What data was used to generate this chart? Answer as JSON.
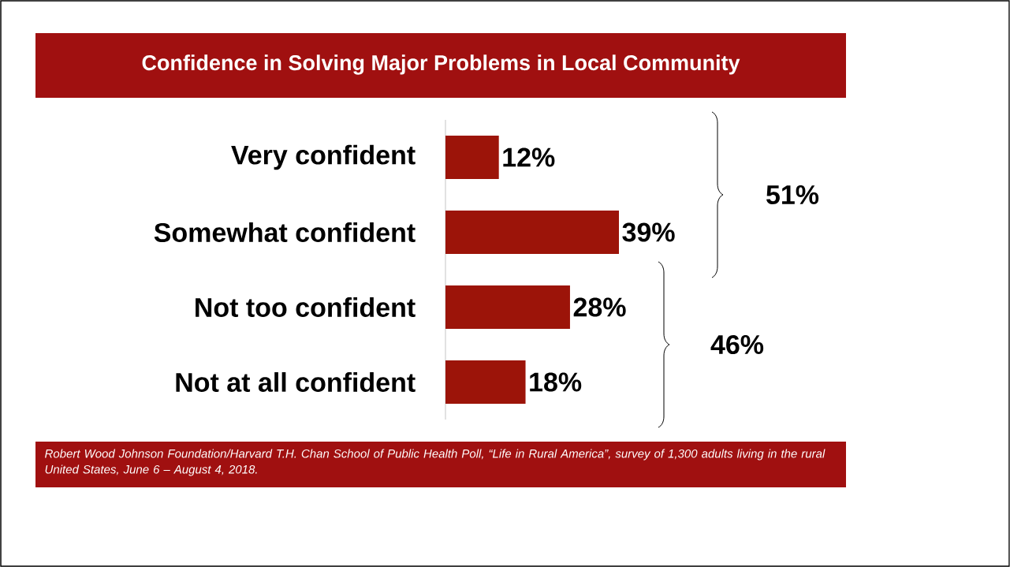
{
  "chart_data": {
    "type": "bar",
    "orientation": "horizontal",
    "title": "Confidence in Solving Major Problems in Local Community",
    "categories": [
      "Very confident",
      "Somewhat confident",
      "Not too confident",
      "Not at all confident"
    ],
    "values": [
      12,
      39,
      28,
      18
    ],
    "value_labels": [
      "12%",
      "39%",
      "28%",
      "18%"
    ],
    "color": "#9c1409",
    "annotations": [
      "51%",
      "46%",
      "Robert Wood Johnson Foundation/Harvard T.H. Chan School of Public Health Poll, “Life in Rural America”, survey of 1,300 adults living in the rural United States, June 6 – August 4, 2018."
    ],
    "data_labels": false
  }
}
